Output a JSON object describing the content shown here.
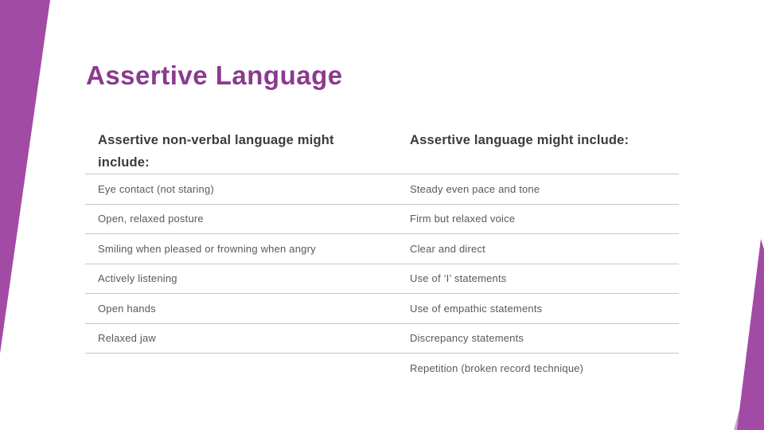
{
  "slide": {
    "title": "Assertive Language"
  },
  "table": {
    "headers": {
      "left": "Assertive non-verbal language might include:",
      "right": "Assertive language might include:"
    },
    "rows": [
      {
        "left": "Eye contact (not staring)",
        "right": "Steady even pace and tone"
      },
      {
        "left": "Open, relaxed posture",
        "right": "Firm but relaxed voice"
      },
      {
        "left": "Smiling when pleased or frowning when angry",
        "right": "Clear and direct"
      },
      {
        "left": "Actively listening",
        "right": "Use of ‘I’ statements"
      },
      {
        "left": "Open hands",
        "right": "Use of empathic statements"
      },
      {
        "left": "Relaxed jaw",
        "right": "Discrepancy statements"
      },
      {
        "left": "",
        "right": "Repetition (broken record technique)"
      }
    ]
  },
  "colors": {
    "accent_purple": "#A14BA5",
    "accent_purple_light_opacity": "0.5",
    "title_purple": "#8B3A8F",
    "header_text": "#3B3B3B",
    "body_text": "#595959",
    "rule_gray": "#C7C7C7",
    "background": "#FFFFFF"
  }
}
